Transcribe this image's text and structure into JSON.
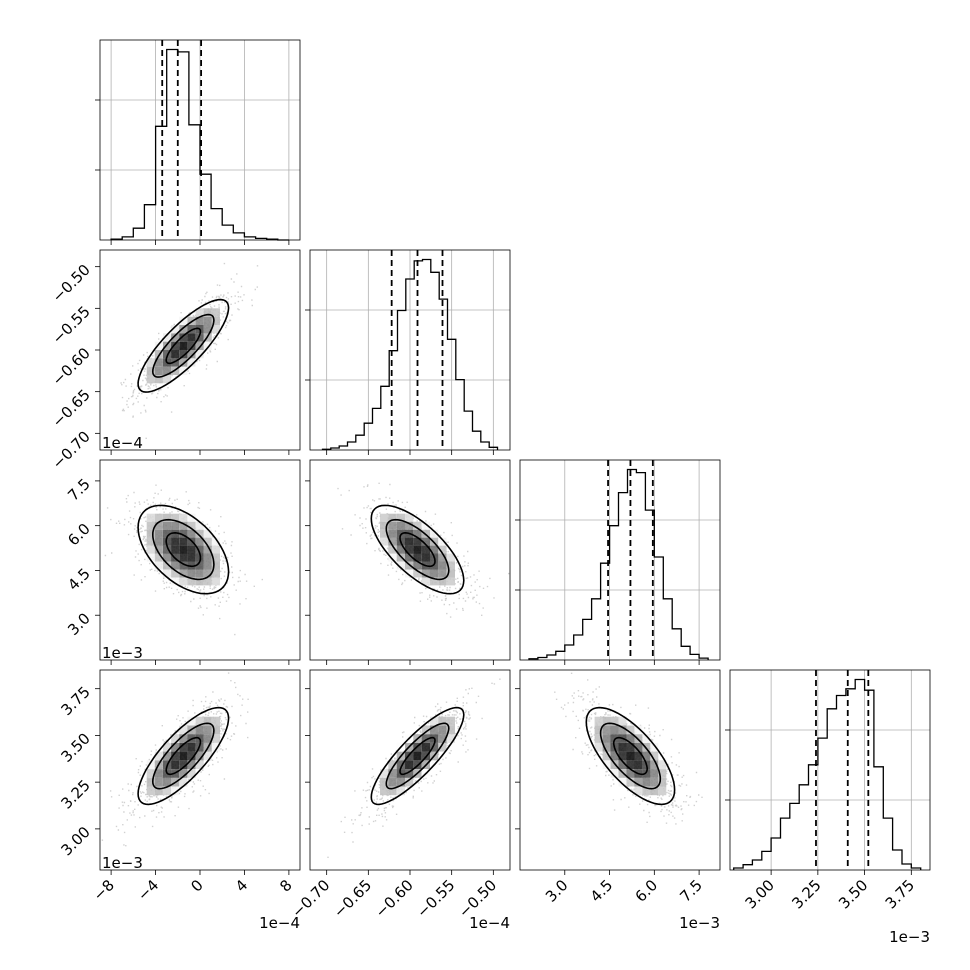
{
  "chart_data": {
    "type": "corner",
    "n_params": 4,
    "grid": true,
    "params": [
      {
        "range": [
          -9,
          9
        ],
        "ticks": [
          -8,
          -4,
          0,
          4,
          8
        ],
        "tick_labels": [
          "−8",
          "−4",
          "0",
          "4",
          "8"
        ],
        "offset_label": "1e−4",
        "quantiles": [
          -3.4,
          -2.0,
          0.1
        ],
        "hist_bin_edges": [
          -8,
          -7,
          -6,
          -5,
          -4,
          -3,
          -2,
          -1,
          0,
          1,
          2,
          3,
          4,
          5,
          6,
          7,
          8
        ],
        "hist_counts": [
          1,
          4,
          15,
          45,
          145,
          243,
          240,
          147,
          84,
          40,
          19,
          9,
          4,
          2,
          1,
          0
        ]
      },
      {
        "range": [
          -0.72,
          -0.48
        ],
        "ticks": [
          -0.7,
          -0.65,
          -0.6,
          -0.55,
          -0.5
        ],
        "tick_labels": [
          "−0.70",
          "−0.65",
          "−0.60",
          "−0.55",
          "−0.50"
        ],
        "offset_label": "1e−4",
        "quantiles": [
          -0.622,
          -0.591,
          -0.561
        ],
        "hist_bin_edges": [
          -0.705,
          -0.695,
          -0.685,
          -0.675,
          -0.665,
          -0.655,
          -0.645,
          -0.635,
          -0.625,
          -0.615,
          -0.605,
          -0.595,
          -0.585,
          -0.575,
          -0.565,
          -0.555,
          -0.545,
          -0.535,
          -0.525,
          -0.515,
          -0.505,
          -0.495
        ],
        "hist_counts": [
          1,
          3,
          6,
          12,
          22,
          40,
          62,
          95,
          148,
          208,
          255,
          282,
          284,
          265,
          225,
          165,
          105,
          58,
          28,
          12,
          4
        ]
      },
      {
        "range": [
          1.5,
          8.2
        ],
        "ticks": [
          3.0,
          4.5,
          6.0,
          7.5
        ],
        "tick_labels": [
          "3.0",
          "4.5",
          "6.0",
          "7.5"
        ],
        "offset_label": "1e−3",
        "quantiles": [
          4.45,
          5.2,
          5.95
        ],
        "hist_bin_edges": [
          1.8,
          2.1,
          2.4,
          2.7,
          3.0,
          3.3,
          3.6,
          3.9,
          4.2,
          4.5,
          4.8,
          5.1,
          5.4,
          5.7,
          6.0,
          6.3,
          6.6,
          6.9,
          7.2,
          7.5,
          7.8
        ],
        "hist_counts": [
          2,
          4,
          8,
          14,
          24,
          40,
          65,
          98,
          155,
          215,
          268,
          305,
          300,
          240,
          165,
          98,
          50,
          22,
          9,
          3
        ]
      },
      {
        "range": [
          2.78,
          3.85
        ],
        "ticks": [
          3.0,
          3.25,
          3.5,
          3.75
        ],
        "tick_labels": [
          "3.00",
          "3.25",
          "3.50",
          "3.75"
        ],
        "offset_label": "1e−3",
        "quantiles": [
          3.24,
          3.41,
          3.52
        ],
        "hist_bin_edges": [
          2.8,
          2.85,
          2.9,
          2.95,
          3.0,
          3.05,
          3.1,
          3.15,
          3.2,
          3.25,
          3.3,
          3.35,
          3.4,
          3.45,
          3.5,
          3.55,
          3.6,
          3.65,
          3.7,
          3.75,
          3.8
        ],
        "hist_counts": [
          3,
          8,
          15,
          28,
          48,
          78,
          100,
          128,
          158,
          198,
          242,
          262,
          272,
          286,
          270,
          155,
          78,
          30,
          9,
          3
        ]
      }
    ],
    "pairs": [
      {
        "x": 0,
        "y": 1,
        "mean": [
          -1.5,
          -0.595
        ],
        "sd": [
          2.2,
          0.03
        ],
        "rho": 0.82
      },
      {
        "x": 0,
        "y": 2,
        "mean": [
          -1.5,
          5.2
        ],
        "sd": [
          2.2,
          0.8
        ],
        "rho": -0.5
      },
      {
        "x": 1,
        "y": 2,
        "mean": [
          -0.591,
          5.2
        ],
        "sd": [
          0.03,
          0.8
        ],
        "rho": -0.7
      },
      {
        "x": 0,
        "y": 3,
        "mean": [
          -1.5,
          3.39
        ],
        "sd": [
          2.2,
          0.14
        ],
        "rho": 0.78
      },
      {
        "x": 1,
        "y": 3,
        "mean": [
          -0.591,
          3.39
        ],
        "sd": [
          0.03,
          0.14
        ],
        "rho": 0.85
      },
      {
        "x": 2,
        "y": 3,
        "mean": [
          5.2,
          3.39
        ],
        "sd": [
          0.8,
          0.14
        ],
        "rho": -0.7
      }
    ]
  }
}
